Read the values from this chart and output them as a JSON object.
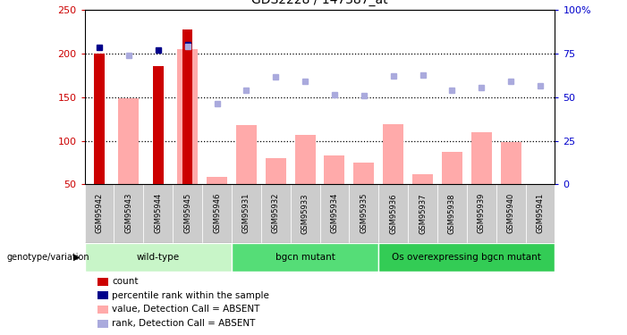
{
  "title": "GDS2228 / 147387_at",
  "samples": [
    "GSM95942",
    "GSM95943",
    "GSM95944",
    "GSM95945",
    "GSM95946",
    "GSM95931",
    "GSM95932",
    "GSM95933",
    "GSM95934",
    "GSM95935",
    "GSM95936",
    "GSM95937",
    "GSM95938",
    "GSM95939",
    "GSM95940",
    "GSM95941"
  ],
  "count_values": [
    200,
    null,
    186,
    228,
    null,
    null,
    null,
    null,
    null,
    null,
    null,
    null,
    null,
    null,
    null,
    null
  ],
  "percentile_values": [
    207,
    null,
    204,
    210,
    null,
    null,
    null,
    null,
    null,
    null,
    null,
    null,
    null,
    null,
    null,
    null
  ],
  "value_absent": [
    null,
    149,
    null,
    205,
    58,
    118,
    80,
    107,
    83,
    75,
    119,
    62,
    87,
    110,
    98,
    null
  ],
  "rank_absent": [
    null,
    198,
    null,
    208,
    143,
    158,
    173,
    168,
    153,
    152,
    174,
    175,
    158,
    161,
    168,
    163
  ],
  "ylim_left": [
    50,
    250
  ],
  "ylim_right": [
    0,
    100
  ],
  "yticks_left": [
    50,
    100,
    150,
    200,
    250
  ],
  "yticks_right": [
    0,
    25,
    50,
    75,
    100
  ],
  "ytick_labels_right": [
    "0",
    "25",
    "50",
    "75",
    "100%"
  ],
  "left_axis_color": "#cc0000",
  "right_axis_color": "#0000cc",
  "bar_count_color": "#cc0000",
  "bar_value_color": "#ffaaaa",
  "dot_percentile_color": "#00008b",
  "dot_rank_color": "#aaaadd",
  "grid_color": "black",
  "bg_color": "white",
  "hgrid_vals": [
    100,
    150,
    200
  ],
  "group_labels": [
    "wild-type",
    "bgcn mutant",
    "Os overexpressing bgcn mutant"
  ],
  "group_ranges": [
    [
      0,
      5
    ],
    [
      5,
      10
    ],
    [
      10,
      16
    ]
  ],
  "group_colors": [
    "#c8f5c8",
    "#55dd77",
    "#33cc55"
  ],
  "legend_items": [
    {
      "label": "count",
      "color": "#cc0000"
    },
    {
      "label": "percentile rank within the sample",
      "color": "#00008b"
    },
    {
      "label": "value, Detection Call = ABSENT",
      "color": "#ffaaaa"
    },
    {
      "label": "rank, Detection Call = ABSENT",
      "color": "#aaaadd"
    }
  ]
}
